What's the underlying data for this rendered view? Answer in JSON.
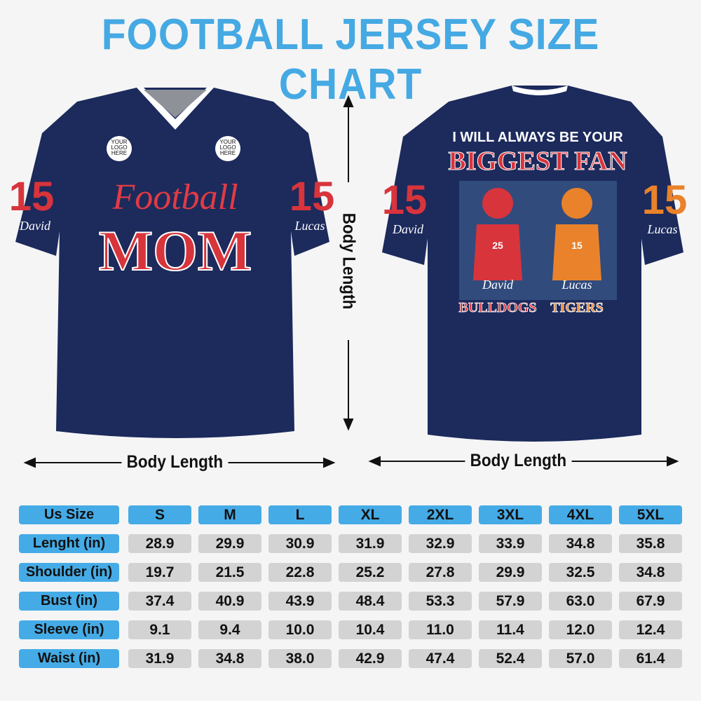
{
  "title": "FOOTBALL JERSEY SIZE CHART",
  "colors": {
    "title": "#45a9e3",
    "header_cell": "#45abe6",
    "value_cell": "#d3d3d3",
    "jersey": "#1c2a5c",
    "red": "#d8343c",
    "orange": "#e9822a"
  },
  "front_jersey": {
    "logo_text": [
      "YOUR",
      "LOGO",
      "HERE"
    ],
    "script_text": "Football",
    "big_text": "MOM",
    "sleeve_left_number": "15",
    "sleeve_left_name": "David",
    "sleeve_right_number": "15",
    "sleeve_right_name": "Lucas"
  },
  "back_jersey": {
    "line1": "I WILL ALWAYS BE YOUR",
    "line2": "BIGGEST FAN",
    "player1": {
      "number": "25",
      "name": "David",
      "team": "BULLDOGS"
    },
    "player2": {
      "number": "15",
      "name": "Lucas",
      "team": "TIGERS"
    },
    "sleeve_left_number": "15",
    "sleeve_left_name": "David",
    "sleeve_right_number": "15",
    "sleeve_right_name": "Lucas"
  },
  "measure_labels": {
    "vertical": "Body Length",
    "front_horizontal": "Body Length",
    "back_horizontal": "Body Length"
  },
  "table": {
    "header_label": "Us Size",
    "sizes": [
      "S",
      "M",
      "L",
      "XL",
      "2XL",
      "3XL",
      "4XL",
      "5XL"
    ],
    "rows": [
      {
        "label": "Lenght (in)",
        "values": [
          "28.9",
          "29.9",
          "30.9",
          "31.9",
          "32.9",
          "33.9",
          "34.8",
          "35.8"
        ]
      },
      {
        "label": "Shoulder (in)",
        "values": [
          "19.7",
          "21.5",
          "22.8",
          "25.2",
          "27.8",
          "29.9",
          "32.5",
          "34.8"
        ]
      },
      {
        "label": "Bust (in)",
        "values": [
          "37.4",
          "40.9",
          "43.9",
          "48.4",
          "53.3",
          "57.9",
          "63.0",
          "67.9"
        ]
      },
      {
        "label": "Sleeve (in)",
        "values": [
          "9.1",
          "9.4",
          "10.0",
          "10.4",
          "11.0",
          "11.4",
          "12.0",
          "12.4"
        ]
      },
      {
        "label": "Waist (in)",
        "values": [
          "31.9",
          "34.8",
          "38.0",
          "42.9",
          "47.4",
          "52.4",
          "57.0",
          "61.4"
        ]
      }
    ]
  }
}
